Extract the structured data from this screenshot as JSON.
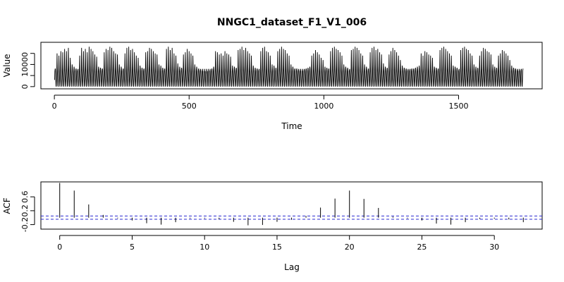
{
  "chart_data": [
    {
      "type": "line",
      "title": "NNGC1_dataset_F1_V1_006",
      "xlabel": "Time",
      "ylabel": "Value",
      "xlim": [
        -50,
        1810
      ],
      "ylim": [
        -1000,
        20000
      ],
      "x_ticks": [
        0,
        500,
        1000,
        1500
      ],
      "y_ticks": [
        0,
        5000,
        10000,
        15000
      ],
      "series": [
        {
          "x_start": 1,
          "x_end": 1740,
          "period": 7,
          "cycle_values": [
            3000,
            7000,
            9500,
            8000,
            4500,
            500,
            0
          ],
          "weekly_peak_values": [
            8000,
            15000,
            14000,
            16000,
            15500,
            17000,
            16000,
            17500,
            13000,
            10000,
            9000,
            8000,
            7500,
            14000,
            17500,
            16000,
            17000,
            15500,
            18000,
            17000,
            16000,
            14500,
            13500,
            9000,
            8500,
            8000,
            15500,
            17000,
            16500,
            18000,
            17500,
            16000,
            15000,
            14500,
            10000,
            9000,
            8000,
            15000,
            17500,
            18000,
            16500,
            17000,
            15500,
            14000,
            13000,
            9500,
            8500,
            8000,
            15500,
            16000,
            17500,
            17000,
            16000,
            15000,
            14500,
            10000,
            9500,
            8500,
            8000,
            17000,
            18000,
            16500,
            17500,
            15000,
            14000,
            10500,
            9000,
            8500,
            14500,
            15500,
            17000,
            16000,
            15000,
            14000,
            10000,
            9000,
            8000,
            7500,
            7000,
            6500,
            6000,
            6500,
            7000,
            8000,
            9000,
            16000,
            15500,
            14500,
            15000,
            14000,
            16000,
            15000,
            14500,
            13500,
            9500,
            9000,
            8500,
            16500,
            17000,
            18000,
            16500,
            17500,
            16000,
            15000,
            14000,
            9500,
            8500,
            8000,
            7500,
            16000,
            17500,
            18000,
            16000,
            15500,
            14000,
            10000,
            9500,
            8500,
            16000,
            17000,
            18000,
            17000,
            16500,
            15000,
            14000,
            10000,
            9000,
            8000,
            8000,
            7500,
            7000,
            7000,
            7500,
            8000,
            8500,
            9000,
            14000,
            15000,
            16500,
            15500,
            14500,
            13000,
            12000,
            9000,
            8500,
            8000,
            16000,
            17500,
            18000,
            17000,
            16500,
            15500,
            14000,
            10000,
            9000,
            8500,
            7500,
            16500,
            17000,
            18000,
            17500,
            16500,
            15000,
            14000,
            10000,
            9000,
            8000,
            15500,
            17500,
            18000,
            16500,
            17000,
            15500,
            14500,
            10500,
            9000,
            8500,
            14500,
            16000,
            17500,
            16500,
            15500,
            14000,
            12000,
            9500,
            8500,
            8000,
            7500,
            7500,
            8000,
            8000,
            8500,
            9000,
            9500,
            15000,
            14000,
            16000,
            15500,
            14500,
            14000,
            13000,
            9000,
            8500,
            8000,
            16500,
            17500,
            18000,
            17000,
            16000,
            15000,
            14000,
            9500,
            9000,
            8500,
            7500,
            16500,
            17500,
            18000,
            17000,
            16500,
            15000,
            14000,
            10000,
            9000,
            8500,
            14000,
            16000,
            17500,
            17000,
            16000,
            15500,
            14500,
            10000,
            9000,
            8500,
            14000,
            15000,
            16500,
            16000,
            15000,
            14000,
            12000,
            9500,
            8500,
            8000,
            7500,
            7000,
            7500,
            8000,
            8500
          ]
        }
      ],
      "grid": false,
      "legend": "none"
    },
    {
      "type": "bar",
      "xlabel": "Lag",
      "ylabel": "ACF",
      "xlim": [
        -1.3,
        33.3
      ],
      "ylim": [
        -0.33,
        1.03
      ],
      "x_ticks": [
        0,
        5,
        10,
        15,
        20,
        25,
        30
      ],
      "y_ticks": [
        -0.2,
        0.2,
        0.6
      ],
      "confidence_band": 0.047,
      "lags": [
        0,
        1,
        2,
        3,
        4,
        5,
        6,
        7,
        8,
        9,
        10,
        11,
        12,
        13,
        14,
        15,
        16,
        17,
        18,
        19,
        20,
        21,
        22,
        23,
        24,
        25,
        26,
        27,
        28,
        29,
        30,
        31,
        32
      ],
      "values": [
        1.0,
        0.78,
        0.38,
        0.08,
        -0.02,
        -0.08,
        -0.16,
        -0.2,
        -0.13,
        -0.02,
        -0.02,
        -0.04,
        -0.12,
        -0.22,
        -0.21,
        -0.12,
        -0.06,
        0.05,
        0.29,
        0.55,
        0.78,
        0.54,
        0.28,
        0.03,
        -0.02,
        -0.08,
        -0.17,
        -0.2,
        -0.13,
        -0.04,
        -0.03,
        -0.05,
        -0.13
      ],
      "grid": false,
      "legend": "none"
    }
  ]
}
